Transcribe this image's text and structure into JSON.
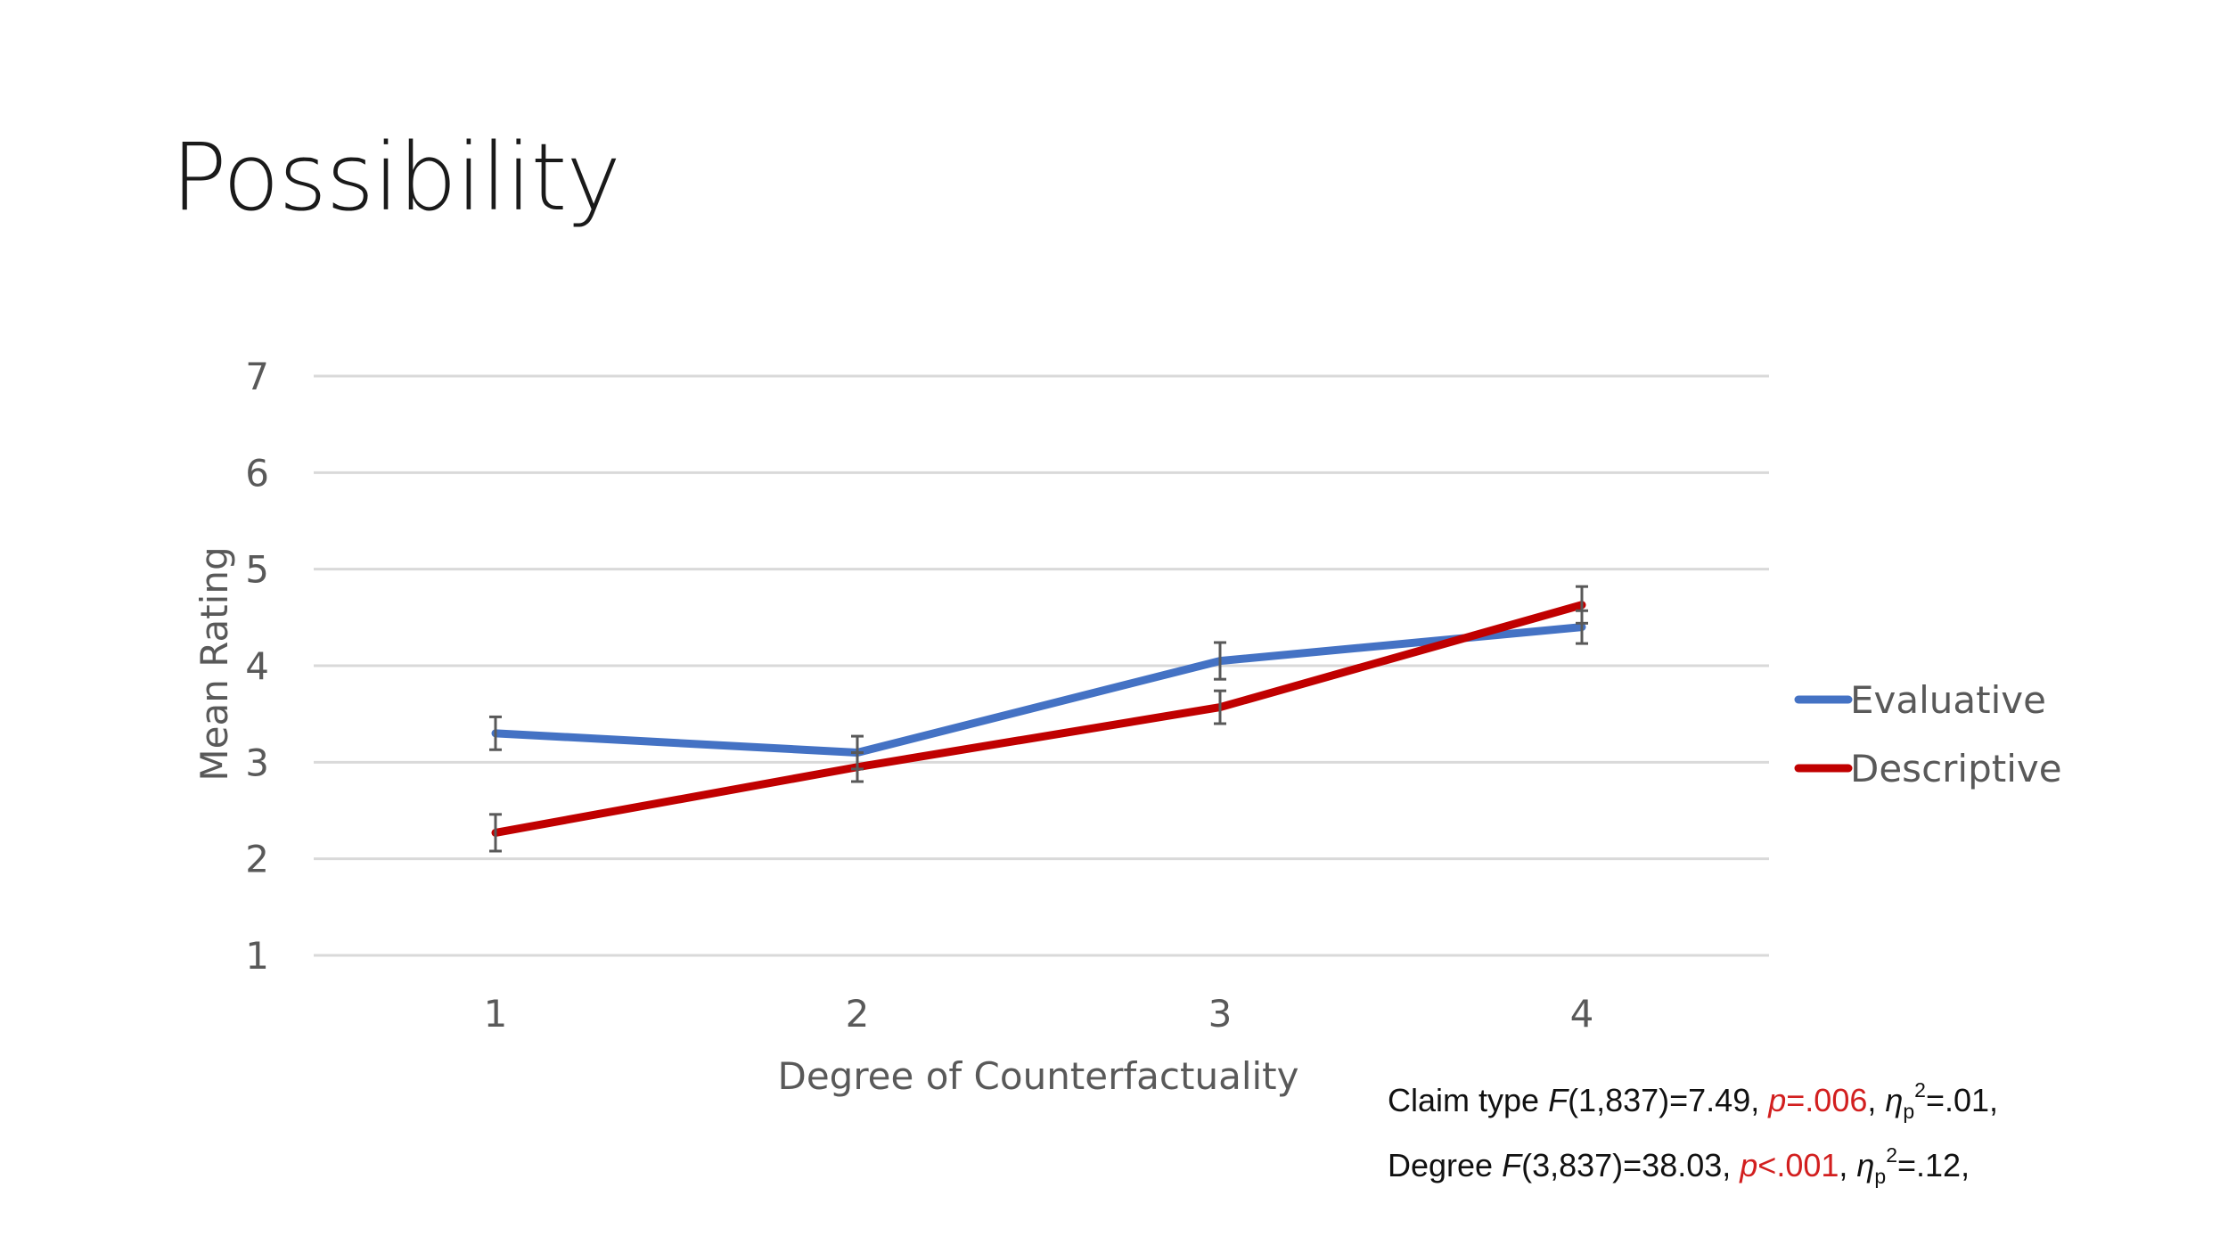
{
  "slide": {
    "title": "Possibility"
  },
  "chart_data": {
    "type": "line",
    "xlabel": "Degree of Counterfactuality",
    "ylabel": "Mean Rating",
    "categories": [
      "1",
      "2",
      "3",
      "4"
    ],
    "ylim": [
      1,
      7
    ],
    "yticks": [
      "1",
      "2",
      "3",
      "4",
      "5",
      "6",
      "7"
    ],
    "grid": true,
    "legend_position": "right",
    "error_bars": true,
    "series": [
      {
        "name": "Evaluative",
        "color": "#4472c4",
        "values": [
          3.3,
          3.1,
          4.05,
          4.4
        ],
        "error": [
          0.17,
          0.17,
          0.19,
          0.17
        ]
      },
      {
        "name": "Descriptive",
        "color": "#c00000",
        "values": [
          2.27,
          2.95,
          3.57,
          4.63
        ],
        "error": [
          0.19,
          0.15,
          0.17,
          0.19
        ]
      }
    ]
  },
  "stats": {
    "claim": {
      "label": "Claim type ",
      "f_letter": "F",
      "f_args": "(1,837)=7.49, ",
      "p_letter": "p",
      "p_value": "=.006",
      "sep": ", ",
      "eta": "η",
      "eta_sub": "p",
      "eta_sup": "2",
      "eta_value": "=.01,"
    },
    "degree": {
      "label": "Degree ",
      "f_letter": "F",
      "f_args": "(3,837)=38.03, ",
      "p_letter": "p",
      "p_value": "<.001",
      "sep": ", ",
      "eta": "η",
      "eta_sub": "p",
      "eta_sup": "2",
      "eta_value": "=.12,"
    }
  }
}
